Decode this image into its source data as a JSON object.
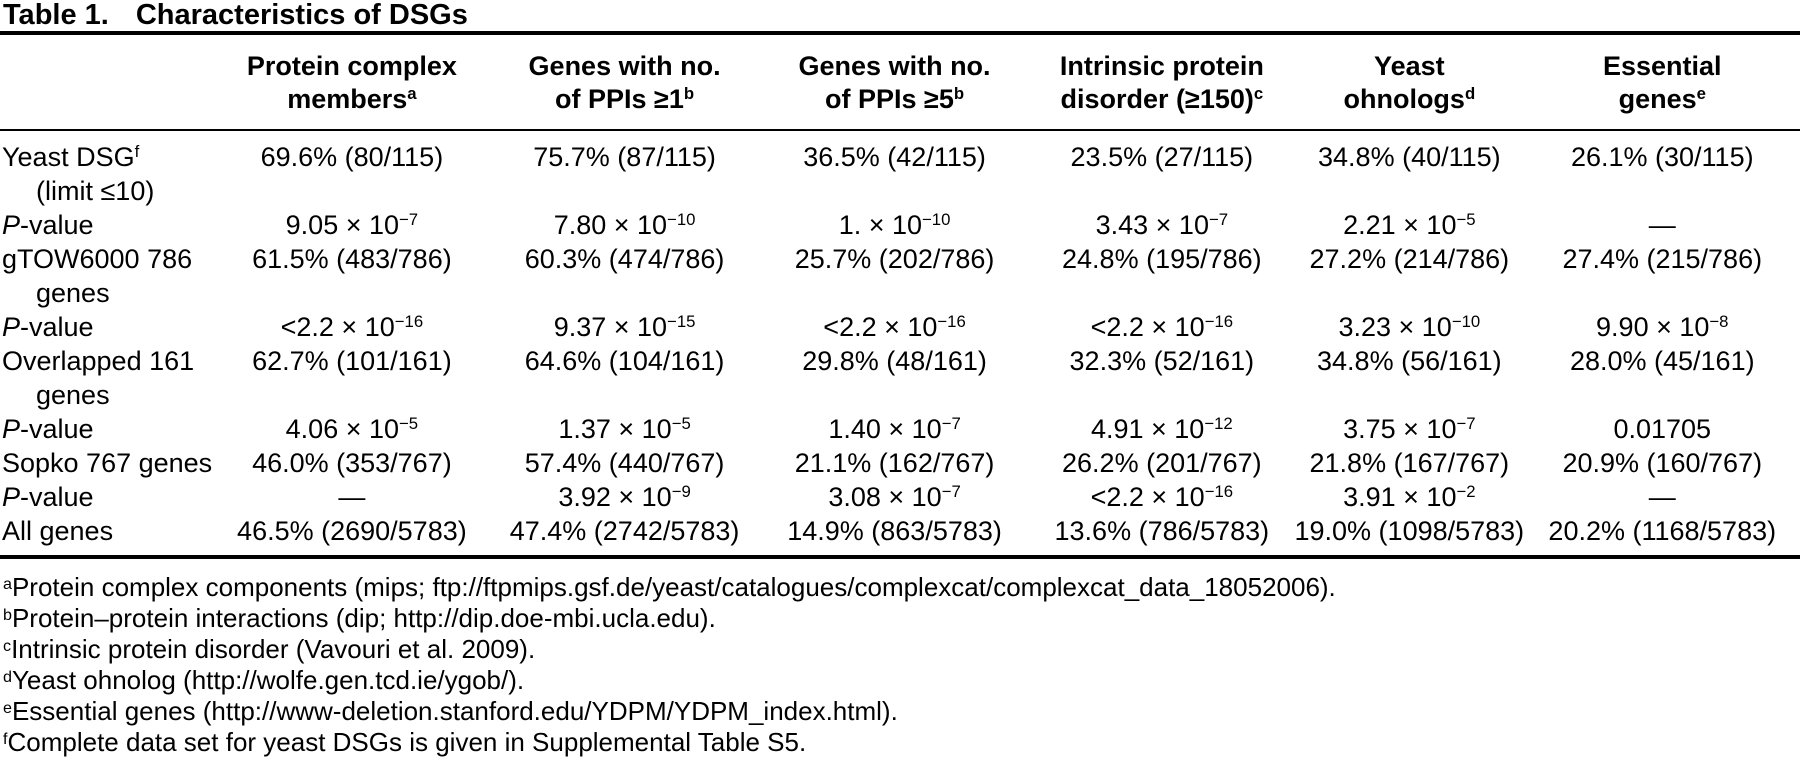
{
  "title": {
    "label": "Table 1.",
    "text": "Characteristics of DSGs"
  },
  "table": {
    "headers": [
      {
        "l1": "Protein complex",
        "l2": "members",
        "sup": "a"
      },
      {
        "l1": "Genes with no.",
        "l2": "of PPIs ≥1",
        "sup": "b"
      },
      {
        "l1": "Genes with no.",
        "l2": "of PPIs ≥5",
        "sup": "b"
      },
      {
        "l1": "Intrinsic protein",
        "l2": "disorder (≥150)",
        "sup": "c"
      },
      {
        "l1": "Yeast",
        "l2": "ohnologs",
        "sup": "d"
      },
      {
        "l1": "Essential",
        "l2": "genes",
        "sup": "e"
      }
    ],
    "rows": [
      {
        "label": "Yeast DSG",
        "label_sup": "f",
        "label2": "(limit ≤10)",
        "cells": [
          {
            "t": "69.6% (80/115)"
          },
          {
            "t": "75.7% (87/115)"
          },
          {
            "t": "36.5% (42/115)"
          },
          {
            "t": "23.5% (27/115)"
          },
          {
            "t": "34.8% (40/115)"
          },
          {
            "t": "26.1% (30/115)"
          }
        ]
      },
      {
        "label_i": "P",
        "label": "-value",
        "cells": [
          {
            "t": "9.05 × 10",
            "e": "−7"
          },
          {
            "t": "7.80 × 10",
            "e": "−10"
          },
          {
            "t": "1. × 10",
            "e": "−10"
          },
          {
            "t": "3.43 × 10",
            "e": "−7"
          },
          {
            "t": "2.21 × 10",
            "e": "−5"
          },
          {
            "t": "—"
          }
        ]
      },
      {
        "label": "gTOW6000 786",
        "label2": "genes",
        "cells": [
          {
            "t": "61.5% (483/786)"
          },
          {
            "t": "60.3% (474/786)"
          },
          {
            "t": "25.7% (202/786)"
          },
          {
            "t": "24.8% (195/786)"
          },
          {
            "t": "27.2% (214/786)"
          },
          {
            "t": "27.4% (215/786)"
          }
        ]
      },
      {
        "label_i": "P",
        "label": "-value",
        "cells": [
          {
            "t": "<2.2 × 10",
            "e": "−16"
          },
          {
            "t": "9.37 × 10",
            "e": "−15"
          },
          {
            "t": "<2.2 × 10",
            "e": "−16"
          },
          {
            "t": "<2.2 × 10",
            "e": "−16"
          },
          {
            "t": "3.23 × 10",
            "e": "−10"
          },
          {
            "t": "9.90 × 10",
            "e": "−8"
          }
        ]
      },
      {
        "label": "Overlapped 161",
        "label2": "genes",
        "cells": [
          {
            "t": "62.7% (101/161)"
          },
          {
            "t": "64.6% (104/161)"
          },
          {
            "t": "29.8% (48/161)"
          },
          {
            "t": "32.3% (52/161)"
          },
          {
            "t": "34.8% (56/161)"
          },
          {
            "t": "28.0% (45/161)"
          }
        ]
      },
      {
        "label_i": "P",
        "label": "-value",
        "cells": [
          {
            "t": "4.06 × 10",
            "e": "−5"
          },
          {
            "t": "1.37 × 10",
            "e": "−5"
          },
          {
            "t": "1.40 × 10",
            "e": "−7"
          },
          {
            "t": "4.91 × 10",
            "e": "−12"
          },
          {
            "t": "3.75 × 10",
            "e": "−7"
          },
          {
            "t": "0.01705"
          }
        ]
      },
      {
        "label": "Sopko 767 genes",
        "cells": [
          {
            "t": "46.0% (353/767)"
          },
          {
            "t": "57.4% (440/767)"
          },
          {
            "t": "21.1% (162/767)"
          },
          {
            "t": "26.2% (201/767)"
          },
          {
            "t": "21.8% (167/767)"
          },
          {
            "t": "20.9% (160/767)"
          }
        ]
      },
      {
        "label_i": "P",
        "label": "-value",
        "cells": [
          {
            "t": "—"
          },
          {
            "t": "3.92 × 10",
            "e": "−9"
          },
          {
            "t": "3.08 × 10",
            "e": "−7"
          },
          {
            "t": "<2.2 × 10",
            "e": "−16"
          },
          {
            "t": "3.91 × 10",
            "e": "−2"
          },
          {
            "t": "—"
          }
        ]
      },
      {
        "label": "All genes",
        "cells": [
          {
            "t": "46.5% (2690/5783)"
          },
          {
            "t": "47.4% (2742/5783)"
          },
          {
            "t": "14.9% (863/5783)"
          },
          {
            "t": "13.6% (786/5783)"
          },
          {
            "t": "19.0% (1098/5783)"
          },
          {
            "t": "20.2% (1168/5783)"
          }
        ]
      }
    ]
  },
  "footnotes": [
    {
      "sup": "a",
      "text": "Protein complex components (mips; ftp://ftpmips.gsf.de/yeast/catalogues/complexcat/complexcat_data_18052006)."
    },
    {
      "sup": "b",
      "text": "Protein–protein interactions (dip; http://dip.doe-mbi.ucla.edu)."
    },
    {
      "sup": "c",
      "text": "Intrinsic protein disorder (Vavouri et al. 2009)."
    },
    {
      "sup": "d",
      "text": "Yeast ohnolog (http://wolfe.gen.tcd.ie/ygob/)."
    },
    {
      "sup": "e",
      "text": "Essential genes (http://www-deletion.stanford.edu/YDPM/YDPM_index.html)."
    },
    {
      "sup": "f",
      "text": "Complete data set for yeast DSGs is given in Supplemental Table S5."
    }
  ]
}
